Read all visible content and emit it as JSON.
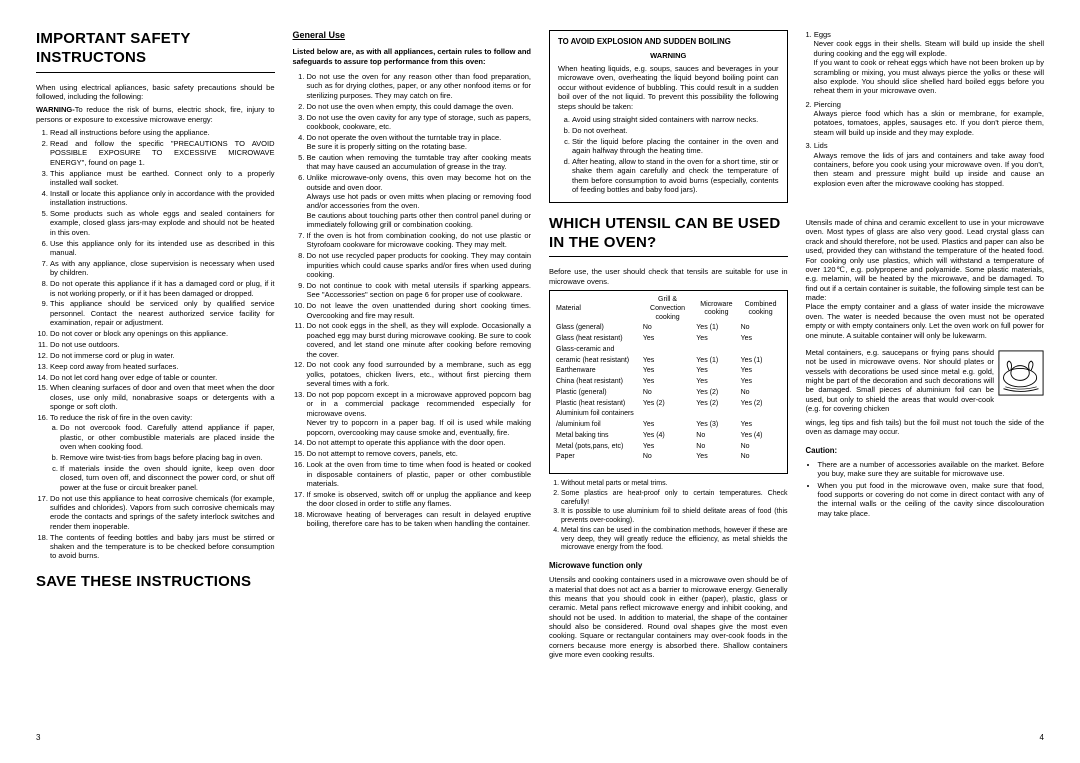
{
  "page": {
    "left_num": "3",
    "right_num": "4"
  },
  "col1": {
    "title": "IMPORTANT SAFETY INSTRUCTONS",
    "intro": "When using electrical apliances, basic safety precautions should be followed, including the following:",
    "warning_label": "WARNING-",
    "warning_text": "To reduce the risk of burns, electric shock, fire, injury to persons or exposure to excessive microwave energy:",
    "items": [
      "Read all instructions before using the appliance.",
      "Read and follow the specific \"PRECAUTIONS TO AVOID POSSIBLE EXPOSURE TO EXCESSIVE MICROWAVE ENERGY\", found on page 1.",
      "This appliance must be earthed. Connect only to a properly installed wall socket.",
      "Install or locate this appliance only in accordance with the provided installation instructions.",
      "Some products such as whole eggs and sealed containers for example, closed glass jars-may explode and should not be heated in this oven.",
      "Use this appliance only for its intended use as described in this manual.",
      "As with any appliance, close supervision is necessary when used by children.",
      "Do not operate this appliance if it has a damaged cord or plug, if it is not working properly, or if it has been damaged or dropped.",
      "This appliance should be serviced only by qualified service personnel. Contact the nearest authorized service facility for examination, repair or adjustment.",
      "Do not cover or block any openings on this appliance.",
      "Do not use outdoors.",
      "Do not immerse cord or plug in water.",
      "Keep cord away from heated surfaces.",
      "Do not let cord hang over edge of table or counter.",
      "When cleaning surfaces of door and oven that meet when the door closes, use only mild, nonabrasive soaps or detergents with a sponge or soft cloth.",
      "To reduce the risk of fire in the oven cavity:",
      "Do not use this appliance to heat corrosive chemicals (for example, sulfides and chlorides). Vapors from such corrosive chemicals may erode the contacts and springs of the safety interlock switches and render them inoperable.",
      "The contents of feeding bottles and baby jars must be stirred or shaken and the temperature is to be checked before consumption to avoid burns."
    ],
    "sub16": [
      "Do not overcook food. Carefully attend appliance if paper, plastic, or other combustible materials are placed inside the oven when cooking food.",
      "Remove wire twist-ties from bags before placing bag in oven.",
      "If materials inside the oven should ignite, keep oven door closed, turn oven off, and disconnect the power cord, or shut off power at the fuse or circuit breaker panel."
    ],
    "save": "SAVE THESE INSTRUCTIONS"
  },
  "col2": {
    "heading": "General Use",
    "intro": "Listed below are, as with all appliances, certain rules to follow and safeguards to assure top performance from this oven:",
    "items": [
      "Do not use the oven for any reason other than food preparation, such as for drying clothes, paper, or any other nonfood items or for sterilizing purposes. They may catch on fire.",
      "Do not use the oven when empty, this could damage the oven.",
      "Do not use the oven cavity for any type of storage, such as papers, cookbook, cookware, etc.",
      "Do not operate the oven without the turntable tray in place.\nBe sure it is properly sitting on the rotating base.",
      "Be caution when removing the turntable tray after cooking meats that may have caused an accumulation of grease in the tray.",
      "Unlike microwave-only ovens, this oven may become hot on the outside and oven door.\nAlways use hot pads or oven mitts when placing or removing food and/or accessories from the oven.\nBe cautions about touching parts other then control panel during or immediately following grill or combination cooking.",
      "If the oven is hot from combination cooking, do not use plastic or Styrofoam cookware for microwave cooking. They may melt.",
      "Do not use recycled paper products for cooking. They may contain impurities which could cause sparks and/or fires when used during cooking.",
      "Do not continue to cook with metal utensils if sparking appears. See \"Accessories\" section on page 6 for proper use of cookware.",
      "Do not leave the oven unattended during short cooking times. Overcooking and fire may result.",
      "Do not cook eggs in the shell, as they will explode. Occasionally a poached egg may burst during microwave cooking. Be sure to cook covered, and let stand one minute after cooking before removing the cover.",
      "Do not cook any food surrounded by a membrane, such as egg yolks, potatoes, chicken livers, etc., without first piercing them several times with a fork.",
      "Do not pop popcorn except in a microwave approved popcorn bag or in a commercial package recommended especially for microwave ovens.\nNever try to popcorn in a paper bag. If oil is used while making popcorn, overcooking may cause smoke and, eventually, fire.",
      "Do not attempt to operate this appliance with the door open.",
      "Do not attempt to remove covers, panels, etc.",
      "Look at the oven from time to time when food is heated or cooked in disposable containers of plastic, paper or other combustible materials.",
      "If smoke is observed, switch off or unplug the appliance and keep the door closed in order to stifle any flames.",
      "Microwave heating of berverages can result in delayed eruptive boiling, therefore care has to be taken when handling the container."
    ]
  },
  "col3": {
    "box_title": "TO AVOID EXPLOSION AND SUDDEN BOILING",
    "box_warning": "WARNING",
    "box_intro": "When heating liquids, e.g. soups, sauces and beverages in your microwave oven, overheating the liquid beyond boiling point can occur without evidence of bubbling. This could result in a sudden boil over of the not liquid. To prevent this possibility the following steps should be taken:",
    "box_list": [
      "Avoid using straight sided containers with narrow necks.",
      "Do not overheat.",
      "Stir the liquid before placing the container in the oven and again halfway through the heating time.",
      "After heating, allow to stand in the oven for a short time, stir or shake them again carefully and check the temperature of them before consumption to avoid burns (especially, contents of feeding bottles and baby food jars)."
    ],
    "section_title": "WHICH UTENSIL CAN BE USED IN THE OVEN?",
    "section_intro": "Before use, the user should check that tensils are suitable for use in microwave ovens.",
    "table": {
      "headers": [
        "Material",
        "Grill & Convection cooking",
        "Microware cooking",
        "Combined cooking"
      ],
      "rows": [
        [
          "Glass (general)",
          "No",
          "Yes (1)",
          "No"
        ],
        [
          "Glass (heat resistant)",
          "Yes",
          "Yes",
          "Yes"
        ],
        [
          "Glass-ceramic and",
          "",
          "",
          ""
        ],
        [
          "ceramic (heat resistant)",
          "Yes",
          "Yes (1)",
          "Yes (1)"
        ],
        [
          "Earthenware",
          "Yes",
          "Yes",
          "Yes"
        ],
        [
          "China (heat resistant)",
          "Yes",
          "Yes",
          "Yes"
        ],
        [
          "Plastic (general)",
          "No",
          "Yes (2)",
          "No"
        ],
        [
          "Plastic (heat resistant)",
          "Yes (2)",
          "Yes (2)",
          "Yes (2)"
        ],
        [
          "Aluminium foil containers",
          "",
          "",
          ""
        ],
        [
          "/aluminium foil",
          "Yes",
          "Yes (3)",
          "Yes"
        ],
        [
          "Metal baking tins",
          "Yes (4)",
          "No",
          "Yes (4)"
        ],
        [
          "Metal (pots,pans, etc)",
          "Yes",
          "No",
          "No"
        ],
        [
          "Paper",
          "No",
          "Yes",
          "No"
        ]
      ]
    },
    "notes": [
      "Without metal parts or metal trims.",
      "Some plastics are heat-proof only to certain temperatures. Check carefully!",
      "It is possible to use aluminium foil to shield delitate areas of food (this prevents over-cooking).",
      "Metal tins can be used in the combination methods, however if these are very deep, they will greatly reduce the efficiency, as metal shields the microwave energy from the food."
    ],
    "mw_only_head": "Microwave function only",
    "mw_only_text": "Utensils and cooking containers used in a microwave oven should be of a material that does not act as a barrier to microwave energy. Generally this means that you should cook in either (paper), plastic, glass or ceramic. Metal pans reflect microwave energy and inhibit cooking, and should not be used. In addition to material, the shape of the container should also be considered. Round oval shapes give the most even cooking. Square or rectangular containers may over-cook foods in the corners because more energy is absorbed there. Shallow containers give more even cooking results."
  },
  "col4": {
    "eggs_head": "1. Eggs",
    "eggs_text": "Never cook eggs in their shells. Steam will build up inside the shell during cooking and the egg will explode.\nIf you want to cook or reheat eggs which have not been broken up by scrambling or mixing, you must always pierce the yolks or these will also explode. You should slice shelled hard boiled eggs before you reheat them in your microwave oven.",
    "piercing_head": "2. Piercing",
    "piercing_text": "Always pierce food which has a skin or membrane, for example, potatoes, tomatoes, apples, sausages etc. If you don't pierce them, steam will build up inside and they may explode.",
    "lids_head": "3. Lids",
    "lids_text": "Always remove the lids of jars and containers and take away food containers, before you cook using your microwave oven. If you don't, then steam and pressure might build up inside and cause an explosion even after the microwave cooking has stopped.",
    "utensils_para": "Utensils made of china and ceramic excellent to use in your microwave oven. Most types of glass are also very good. Lead crystal glass can crack and should therefore, not be used. Plastics and paper can also be used, provided they can withstand the temperature of the heated food. For cooking only use plastics, which will withstand a temperature of over 120℃, e.g. polypropene and polyamide. Some plastic materials, e.g. melamin, will be heated by the microwave, and be damaged. To find out if a certain container is suitable, the following simple test can be made:\nPlace the empty container and a glass of water inside the microwave oven. The water is needed because the oven must not be operated empty or with empty containers only. Let the oven work on full power for one minute. A suitable container will only be lukewarm.",
    "metal_para": "Metal containers, e.g. saucepans or frying pans should not be used in microwave ovens. Nor should plates or vessels with decorations be used since metal e.g. gold, might be part of the decoration and such decorations will be damaged. Small pieces of aluminium foil can be used, but only to shield the areas that would over-cook (e.g. for covering chicken",
    "metal_para2": "wings, leg tips and fish tails) but the foil must not touch the side of the oven as damage may occur.",
    "caution_head": "Caution:",
    "caution_list": [
      "There are a number of accessories available on the market. Before you buy, make sure they are suitable for microwave use.",
      "When you put food in the microwave oven, make sure that food, food supports or covering do not come in direct contact with any of the internal walls or the ceiling of the cavity since discolouration may take place."
    ]
  }
}
